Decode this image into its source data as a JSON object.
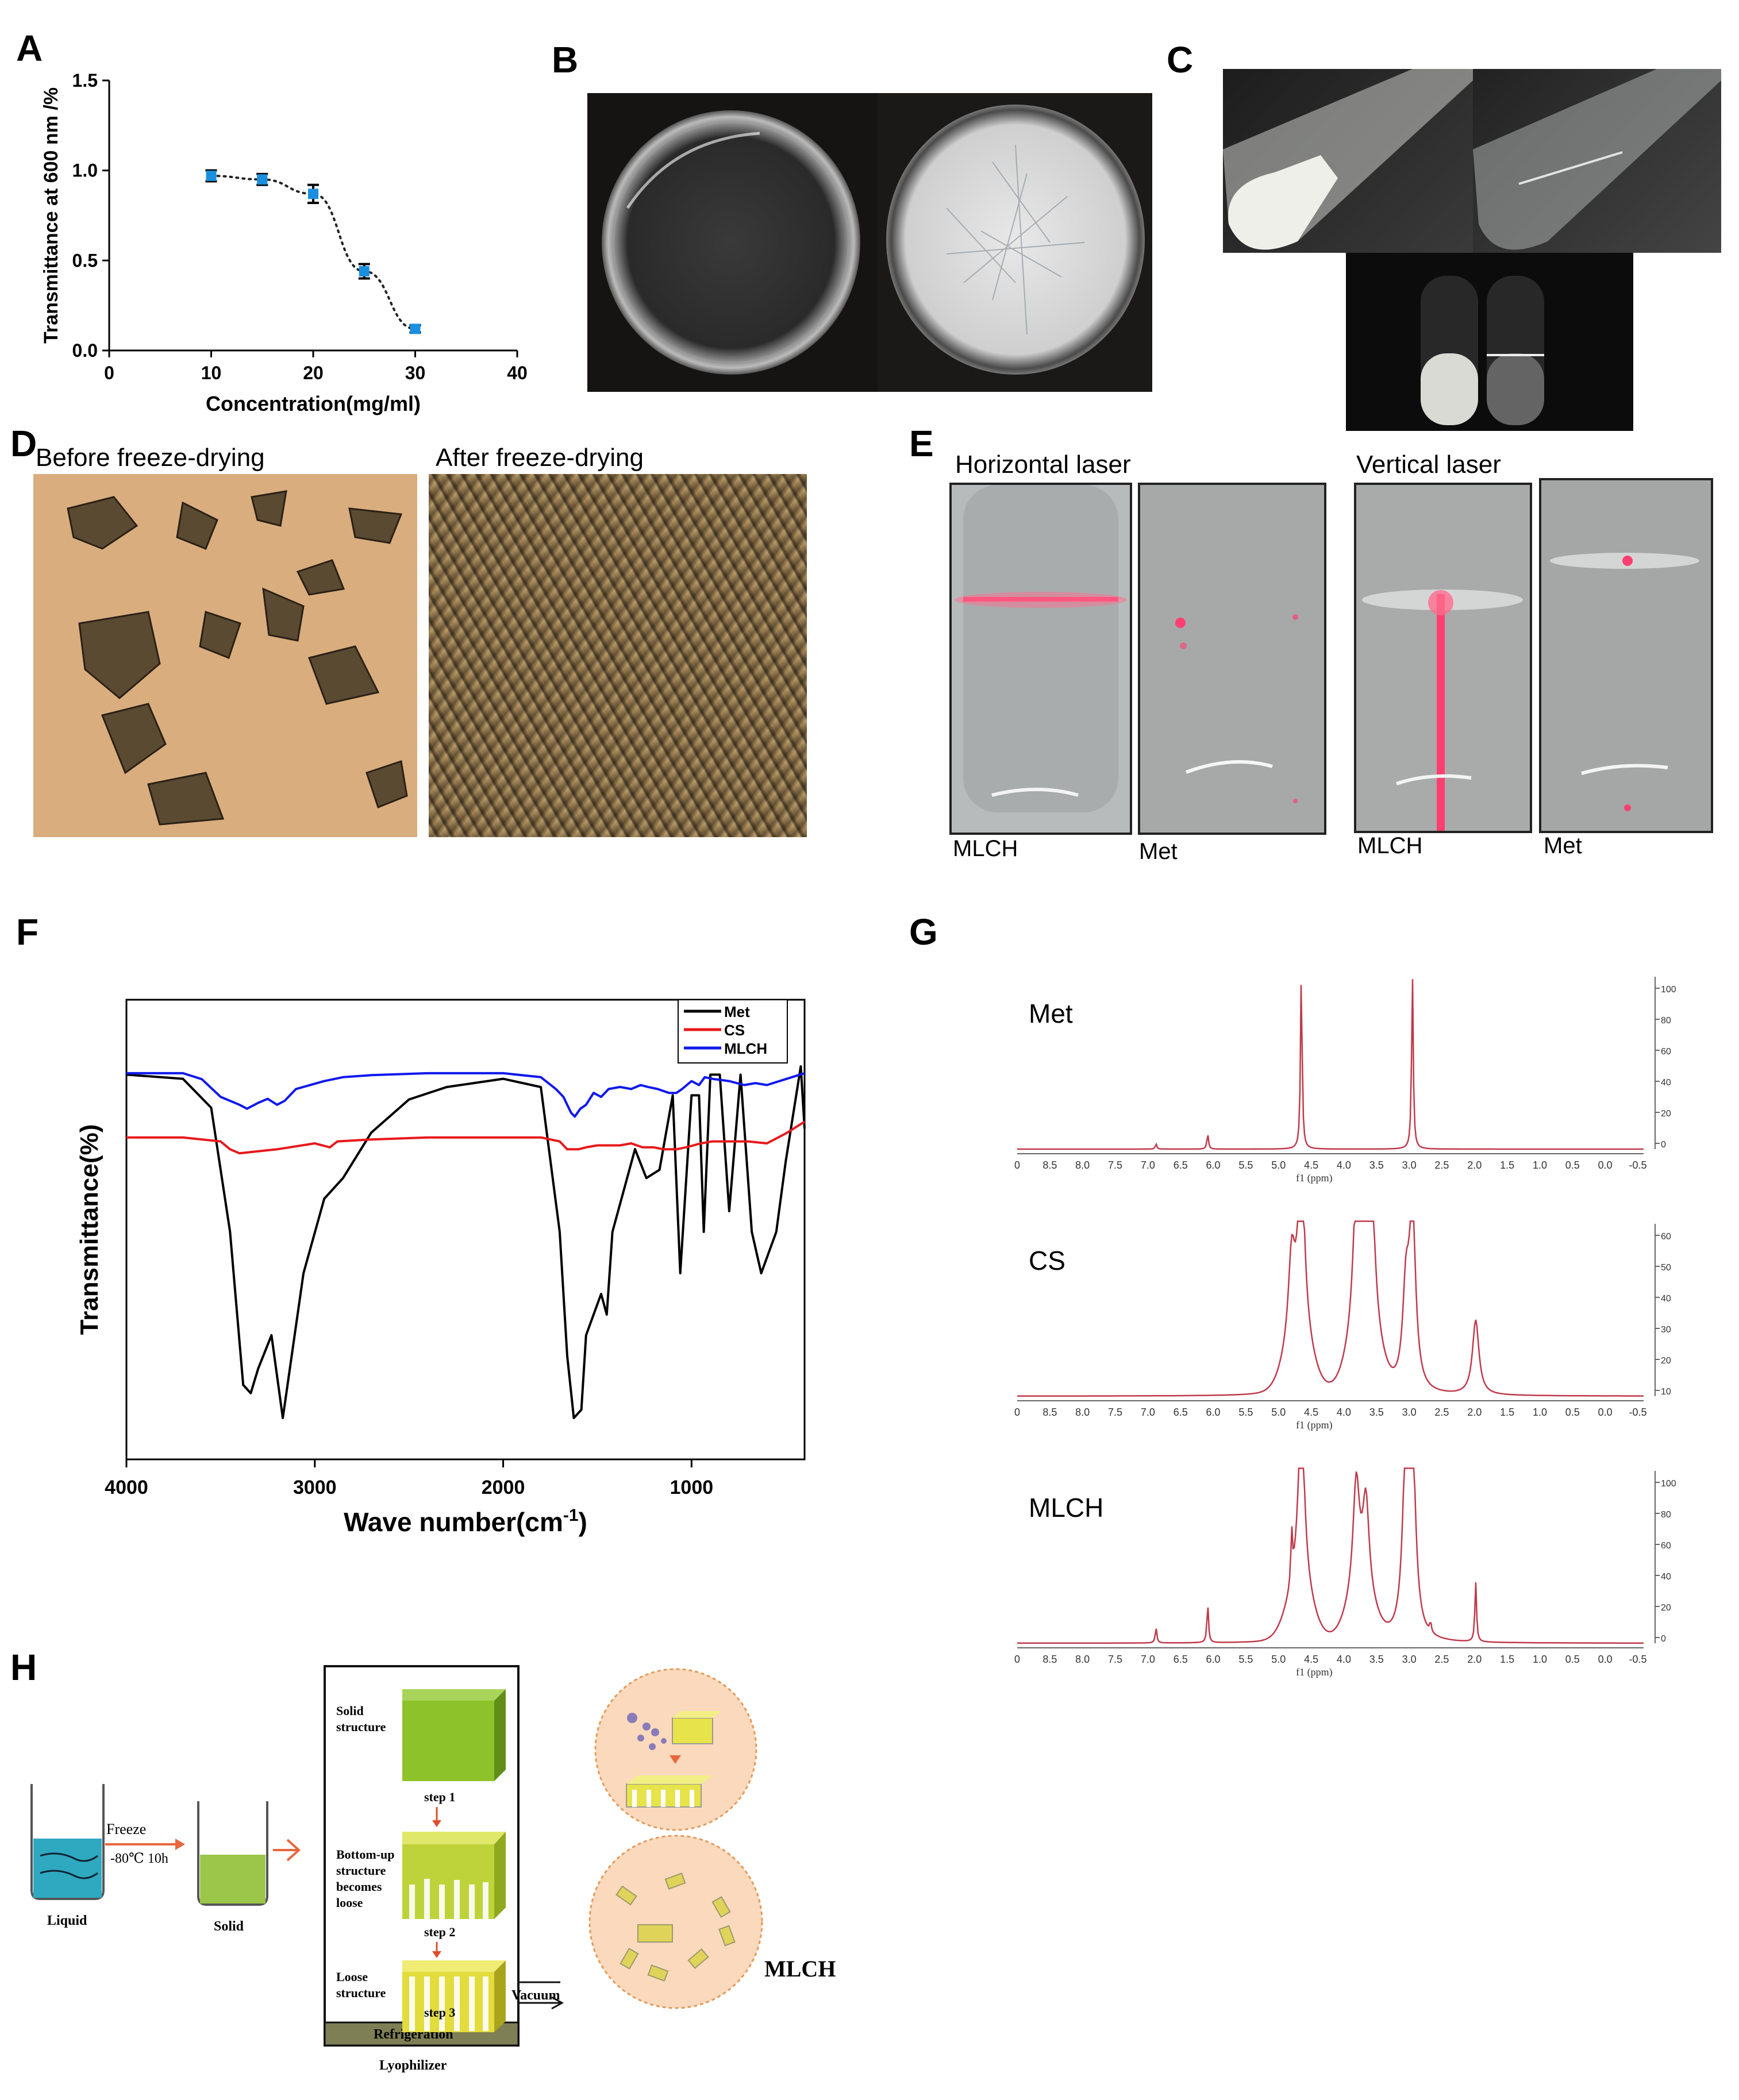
{
  "panels": {
    "A": "A",
    "B": "B",
    "C": "C",
    "D": "D",
    "E": "E",
    "F": "F",
    "G": "G",
    "H": "H"
  },
  "panelD": {
    "before_label": "Before freeze-drying",
    "after_label": "After freeze-drying"
  },
  "panelE": {
    "horizontal_label": "Horizontal laser",
    "vertical_label": "Vertical laser",
    "tube_labels": [
      "MLCH",
      "Met",
      "MLCH",
      "Met"
    ],
    "laser_color": "#ff3f6f"
  },
  "chart_data": [
    {
      "type": "scatter",
      "panel": "A",
      "xlabel": "Concentration(mg/ml)",
      "ylabel": "Transmittance at 600 nm /%",
      "xlim": [
        0,
        40
      ],
      "ylim": [
        0.0,
        1.5
      ],
      "xticks": [
        "0",
        "10",
        "20",
        "30",
        "40"
      ],
      "yticks": [
        "0.0",
        "0.5",
        "1.0",
        "1.5"
      ],
      "x": [
        10,
        15,
        20,
        25,
        30
      ],
      "y": [
        0.97,
        0.95,
        0.87,
        0.44,
        0.12
      ],
      "err": [
        0.03,
        0.03,
        0.05,
        0.04,
        0.02
      ],
      "marker_color": "#1a8fe0",
      "fit": "dotted-sigmoid"
    },
    {
      "type": "line",
      "panel": "F",
      "xlabel": "Wave number(cm",
      "xlabel_sup": "-1",
      "xlabel_end": ")",
      "ylabel": "Transmittance(%)",
      "xlim": [
        4000,
        400
      ],
      "xticks": [
        "4000",
        "3000",
        "2000",
        "1000"
      ],
      "legend_position": "top-right",
      "series": [
        {
          "name": "Met",
          "color": "#000000",
          "x": [
            4000,
            3700,
            3550,
            3450,
            3380,
            3340,
            3300,
            3230,
            3170,
            3060,
            2950,
            2850,
            2700,
            2500,
            2300,
            2000,
            1800,
            1700,
            1660,
            1625,
            1585,
            1560,
            1480,
            1450,
            1420,
            1300,
            1240,
            1170,
            1100,
            1060,
            1000,
            960,
            935,
            900,
            850,
            800,
            740,
            680,
            630,
            550,
            500,
            420,
            400
          ],
          "y": [
            0.93,
            0.92,
            0.85,
            0.55,
            0.18,
            0.16,
            0.22,
            0.3,
            0.1,
            0.45,
            0.63,
            0.68,
            0.79,
            0.87,
            0.9,
            0.92,
            0.9,
            0.55,
            0.25,
            0.1,
            0.12,
            0.3,
            0.4,
            0.35,
            0.55,
            0.75,
            0.68,
            0.7,
            0.88,
            0.45,
            0.88,
            0.88,
            0.55,
            0.93,
            0.93,
            0.6,
            0.93,
            0.55,
            0.45,
            0.55,
            0.72,
            0.95,
            0.8
          ]
        },
        {
          "name": "CS",
          "color": "#e8181a",
          "x": [
            4000,
            3700,
            3500,
            3450,
            3400,
            3300,
            3200,
            3000,
            2920,
            2880,
            2700,
            2400,
            2000,
            1800,
            1700,
            1660,
            1600,
            1560,
            1500,
            1420,
            1380,
            1320,
            1260,
            1200,
            1150,
            1080,
            1030,
            950,
            890,
            800,
            700,
            600,
            500,
            400
          ],
          "y": [
            0.8,
            0.8,
            0.79,
            0.77,
            0.76,
            0.765,
            0.77,
            0.785,
            0.775,
            0.79,
            0.795,
            0.8,
            0.8,
            0.8,
            0.79,
            0.77,
            0.77,
            0.775,
            0.78,
            0.78,
            0.78,
            0.785,
            0.775,
            0.775,
            0.77,
            0.77,
            0.775,
            0.785,
            0.79,
            0.79,
            0.79,
            0.785,
            0.81,
            0.84
          ]
        },
        {
          "name": "MLCH",
          "color": "#1018ee",
          "x": [
            4000,
            3700,
            3600,
            3500,
            3400,
            3360,
            3300,
            3250,
            3200,
            3160,
            3100,
            2950,
            2850,
            2700,
            2400,
            2000,
            1800,
            1720,
            1680,
            1640,
            1620,
            1590,
            1560,
            1520,
            1480,
            1440,
            1380,
            1320,
            1270,
            1230,
            1180,
            1120,
            1080,
            1050,
            1000,
            960,
            930,
            880,
            800,
            720,
            660,
            600,
            500,
            400
          ],
          "y": [
            0.9,
            0.9,
            0.885,
            0.84,
            0.82,
            0.81,
            0.825,
            0.835,
            0.82,
            0.83,
            0.86,
            0.88,
            0.89,
            0.895,
            0.9,
            0.9,
            0.89,
            0.86,
            0.84,
            0.8,
            0.79,
            0.81,
            0.82,
            0.85,
            0.84,
            0.86,
            0.865,
            0.86,
            0.87,
            0.865,
            0.86,
            0.85,
            0.85,
            0.86,
            0.88,
            0.87,
            0.89,
            0.885,
            0.88,
            0.87,
            0.875,
            0.87,
            0.885,
            0.9
          ]
        }
      ]
    },
    {
      "type": "line",
      "panel": "G",
      "xlabel": "f1 (ppm)",
      "xticks": [
        "0",
        "8.5",
        "8.0",
        "7.5",
        "7.0",
        "6.5",
        "6.0",
        "5.5",
        "5.0",
        "4.5",
        "4.0",
        "3.5",
        "3.0",
        "2.5",
        "2.0",
        "1.5",
        "1.0",
        "0.5",
        "0.0",
        "-0.5"
      ],
      "series": [
        {
          "name": "Met",
          "color": "#c0394b",
          "yticks": [
            "100",
            "80",
            "60",
            "40",
            "20",
            "0"
          ],
          "peaks_ppm": [
            6.95,
            6.15,
            4.7,
            2.98
          ],
          "peak_heights": [
            0.03,
            0.09,
            1.05,
            1.05
          ]
        },
        {
          "name": "CS",
          "color": "#c0394b",
          "yticks": [
            "60",
            "50",
            "40",
            "30",
            "20",
            "10"
          ],
          "peaks_ppm": [
            4.85,
            4.7,
            3.85,
            3.7,
            3.6,
            3.08,
            2.98,
            2.0
          ],
          "peak_heights": [
            0.5,
            1.05,
            0.76,
            0.81,
            0.55,
            0.55,
            1.05,
            0.45
          ]
        },
        {
          "name": "MLCH",
          "color": "#c0394b",
          "yticks": [
            "100",
            "80",
            "60",
            "40",
            "20",
            "0"
          ],
          "peaks_ppm": [
            6.95,
            6.15,
            4.85,
            4.7,
            3.85,
            3.7,
            3.08,
            2.98,
            2.7,
            2.0
          ],
          "peak_heights": [
            0.09,
            0.23,
            0.3,
            1.05,
            0.67,
            0.56,
            1.05,
            1.05,
            0.06,
            0.36
          ]
        }
      ]
    }
  ],
  "panelH": {
    "beaker1_label": "Liquid",
    "beaker2_label": "Solid",
    "freeze_label": "Freeze",
    "temp_label": "-80℃ 10h",
    "solid_structure": [
      "Solid",
      "structure"
    ],
    "bottom_up": [
      "Bottom-up",
      "structure",
      "becomes",
      "loose"
    ],
    "loose_structure": [
      "Loose",
      "structure"
    ],
    "step1": "step 1",
    "step2": "step 2",
    "step3": "step 3",
    "vacuum": "Vacuum",
    "refrigeration": "Refrigeration",
    "lyophilizer": "Lyophilizer",
    "mlch": "MLCH"
  }
}
